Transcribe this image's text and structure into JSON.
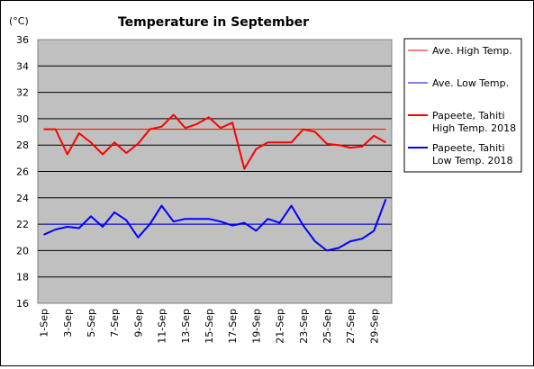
{
  "chart_data": {
    "type": "line",
    "title": "Temperature in September",
    "y_unit": "(°C)",
    "xlabel": "",
    "ylabel": "",
    "ylim": [
      16,
      36
    ],
    "y_ticks": [
      16,
      18,
      20,
      22,
      24,
      26,
      28,
      30,
      32,
      34,
      36
    ],
    "grid": true,
    "legend_position": "right",
    "background": "#c0c0c0",
    "days": [
      1,
      2,
      3,
      4,
      5,
      6,
      7,
      8,
      9,
      10,
      11,
      12,
      13,
      14,
      15,
      16,
      17,
      18,
      19,
      20,
      21,
      22,
      23,
      24,
      25,
      26,
      27,
      28,
      29,
      30
    ],
    "x_tick_labels": [
      "1-Sep",
      "3-Sep",
      "5-Sep",
      "7-Sep",
      "9-Sep",
      "11-Sep",
      "13-Sep",
      "15-Sep",
      "17-Sep",
      "19-Sep",
      "21-Sep",
      "23-Sep",
      "25-Sep",
      "27-Sep",
      "29-Sep"
    ],
    "x_tick_days": [
      1,
      3,
      5,
      7,
      9,
      11,
      13,
      15,
      17,
      19,
      21,
      23,
      25,
      27,
      29
    ],
    "reference_lines": [
      {
        "name": "Ave. High Temp.",
        "value": 29.2,
        "color": "#ff0000"
      },
      {
        "name": "Ave. Low Temp.",
        "value": 22.0,
        "color": "#0000ff"
      }
    ],
    "series": [
      {
        "name_line1": "Papeete, Tahiti",
        "name_line2": "High Temp. 2018",
        "color": "#ff0000",
        "values": [
          29.2,
          29.2,
          27.3,
          28.9,
          28.2,
          27.3,
          28.2,
          27.4,
          28.1,
          29.2,
          29.4,
          30.3,
          29.3,
          29.6,
          30.1,
          29.3,
          29.7,
          26.2,
          27.7,
          28.2,
          28.2,
          28.2,
          29.2,
          29.0,
          28.1,
          28.0,
          27.8,
          27.9,
          28.7,
          28.2
        ]
      },
      {
        "name_line1": "Papeete, Tahiti",
        "name_line2": "Low Temp. 2018",
        "color": "#0000ff",
        "values": [
          21.2,
          21.6,
          21.8,
          21.7,
          22.6,
          21.8,
          22.9,
          22.3,
          21.0,
          22.0,
          23.4,
          22.2,
          22.4,
          22.4,
          22.4,
          22.2,
          21.9,
          22.1,
          21.5,
          22.4,
          22.1,
          23.4,
          21.9,
          20.7,
          20.0,
          20.2,
          20.7,
          20.9,
          21.5,
          23.9
        ]
      }
    ]
  }
}
